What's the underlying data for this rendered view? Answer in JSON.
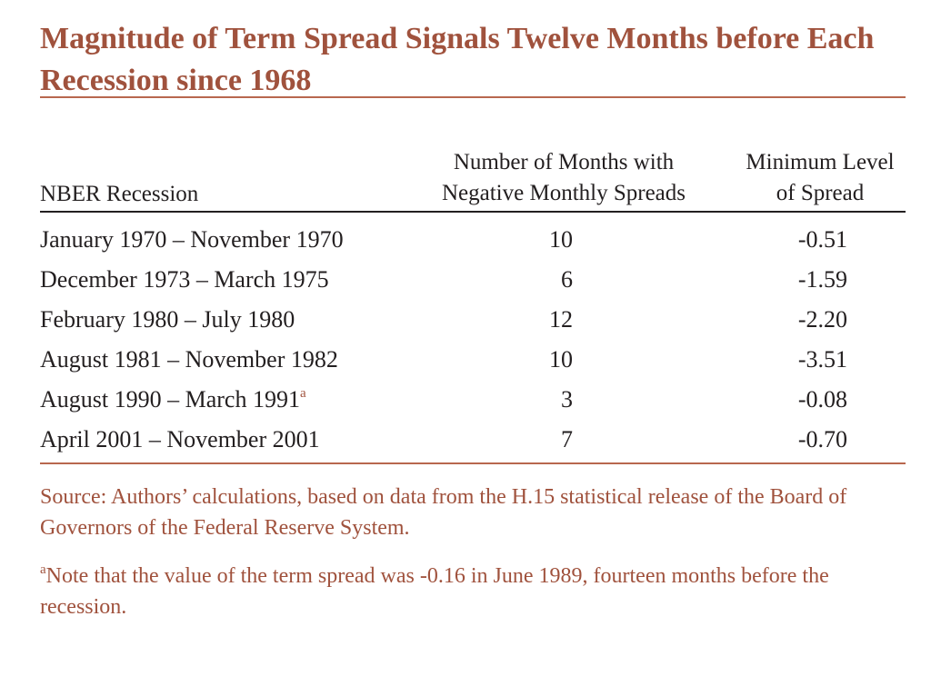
{
  "title": "Magnitude of Term Spread Signals Twelve Months before Each Recession since 1968",
  "table": {
    "headers": {
      "recession": "NBER Recession",
      "months_line1": "Number of Months with",
      "months_line2": "Negative Monthly Spreads",
      "min_line1": "Minimum Level",
      "min_line2": "of Spread"
    },
    "rows": [
      {
        "recession": "January 1970 – November 1970",
        "marker": "",
        "months": "10",
        "min": "-0.51"
      },
      {
        "recession": "December 1973 – March 1975",
        "marker": "",
        "months": "6",
        "min": "-1.59"
      },
      {
        "recession": "February 1980 – July 1980",
        "marker": "",
        "months": "12",
        "min": "-2.20"
      },
      {
        "recession": "August 1981 – November 1982",
        "marker": "",
        "months": "10",
        "min": "-3.51"
      },
      {
        "recession": "August 1990 – March 1991",
        "marker": "a",
        "months": "3",
        "min": "-0.08"
      },
      {
        "recession": "April 2001 – November 2001",
        "marker": "",
        "months": "7",
        "min": "-0.70"
      }
    ]
  },
  "notes": {
    "source": "Source: Authors’ calculations, based on data from the H.15 statistical release of the Board of Governors of the Federal Reserve System.",
    "footnote_marker": "a",
    "footnote": "Note that the value of the term spread was -0.16 in June 1989, fourteen months before the recession."
  },
  "colors": {
    "accent": "#a0523d",
    "rule_accent": "#b8674e",
    "text": "#231f20",
    "background": "#ffffff"
  }
}
